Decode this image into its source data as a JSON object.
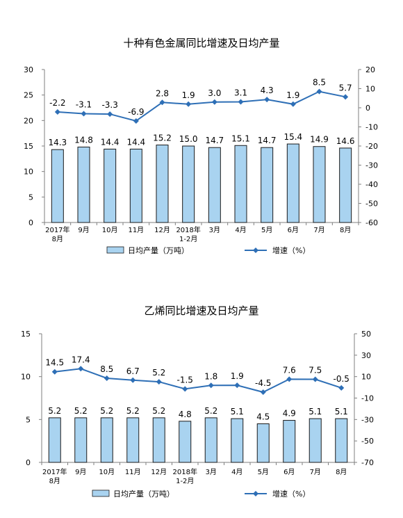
{
  "chart_data": [
    {
      "type": "bar",
      "title": "十种有色金属同比增速及日均产量",
      "categories": [
        [
          "2017年",
          "8月"
        ],
        [
          "9月"
        ],
        [
          "10月"
        ],
        [
          "11月"
        ],
        [
          "12月"
        ],
        [
          "2018年",
          "1-2月"
        ],
        [
          "3月"
        ],
        [
          "4月"
        ],
        [
          "5月"
        ],
        [
          "6月"
        ],
        [
          "7月"
        ],
        [
          "8月"
        ]
      ],
      "series": [
        {
          "name": "日均产量（万吨）",
          "type": "bar",
          "axis": "left",
          "values": [
            14.3,
            14.8,
            14.4,
            14.4,
            15.2,
            15.0,
            14.7,
            15.1,
            14.7,
            15.4,
            14.9,
            14.6
          ],
          "labels": [
            "14.3",
            "14.8",
            "14.4",
            "14.4",
            "15.2",
            "15.0",
            "14.7",
            "15.1",
            "14.7",
            "15.4",
            "14.9",
            "14.6"
          ]
        },
        {
          "name": "增速（%）",
          "type": "line",
          "axis": "right",
          "values": [
            -2.2,
            -3.1,
            -3.3,
            -6.9,
            2.8,
            1.9,
            3.0,
            3.1,
            4.3,
            1.9,
            8.5,
            5.7
          ],
          "labels": [
            "-2.2",
            "-3.1",
            "-3.3",
            "-6.9",
            "2.8",
            "1.9",
            "3.0",
            "3.1",
            "4.3",
            "1.9",
            "8.5",
            "5.7"
          ]
        }
      ],
      "yleft": {
        "min": 0,
        "max": 30,
        "ticks": [
          "0",
          "5",
          "10",
          "15",
          "20",
          "25",
          "30"
        ]
      },
      "yright": {
        "min": -60,
        "max": 20,
        "ticks": [
          "-60",
          "-50",
          "-40",
          "-30",
          "-20",
          "-10",
          "0",
          "10",
          "20"
        ]
      },
      "legend": "bottom",
      "colors": {
        "bar_fill": "#a9d3f0",
        "bar_stroke": "#1a1a1a",
        "line": "#2e6fb6"
      }
    },
    {
      "type": "bar",
      "title": "乙烯同比增速及日均产量",
      "categories": [
        [
          "2017年",
          "8月"
        ],
        [
          "9月"
        ],
        [
          "10月"
        ],
        [
          "11月"
        ],
        [
          "12月"
        ],
        [
          "2018年",
          "1-2月"
        ],
        [
          "3月"
        ],
        [
          "4月"
        ],
        [
          "5月"
        ],
        [
          "6月"
        ],
        [
          "7月"
        ],
        [
          "8月"
        ]
      ],
      "series": [
        {
          "name": "日均产量（万吨）",
          "type": "bar",
          "axis": "left",
          "values": [
            5.2,
            5.2,
            5.2,
            5.2,
            5.2,
            4.8,
            5.2,
            5.1,
            4.5,
            4.9,
            5.1,
            5.1
          ],
          "labels": [
            "5.2",
            "5.2",
            "5.2",
            "5.2",
            "5.2",
            "4.8",
            "5.2",
            "5.1",
            "4.5",
            "4.9",
            "5.1",
            "5.1"
          ]
        },
        {
          "name": "增速（%）",
          "type": "line",
          "axis": "right",
          "values": [
            14.5,
            17.4,
            8.5,
            6.7,
            5.2,
            -1.5,
            1.8,
            1.9,
            -4.5,
            7.6,
            7.5,
            -0.5
          ],
          "labels": [
            "14.5",
            "17.4",
            "8.5",
            "6.7",
            "5.2",
            "-1.5",
            "1.8",
            "1.9",
            "-4.5",
            "7.6",
            "7.5",
            "-0.5"
          ]
        }
      ],
      "yleft": {
        "min": 0,
        "max": 15,
        "ticks": [
          "0",
          "5",
          "10",
          "15"
        ]
      },
      "yright": {
        "min": -70,
        "max": 50,
        "ticks": [
          "-70",
          "-50",
          "-30",
          "-10",
          "10",
          "30",
          "50"
        ]
      },
      "legend": "bottom",
      "colors": {
        "bar_fill": "#a9d3f0",
        "bar_stroke": "#1a1a1a",
        "line": "#2e6fb6"
      }
    }
  ]
}
